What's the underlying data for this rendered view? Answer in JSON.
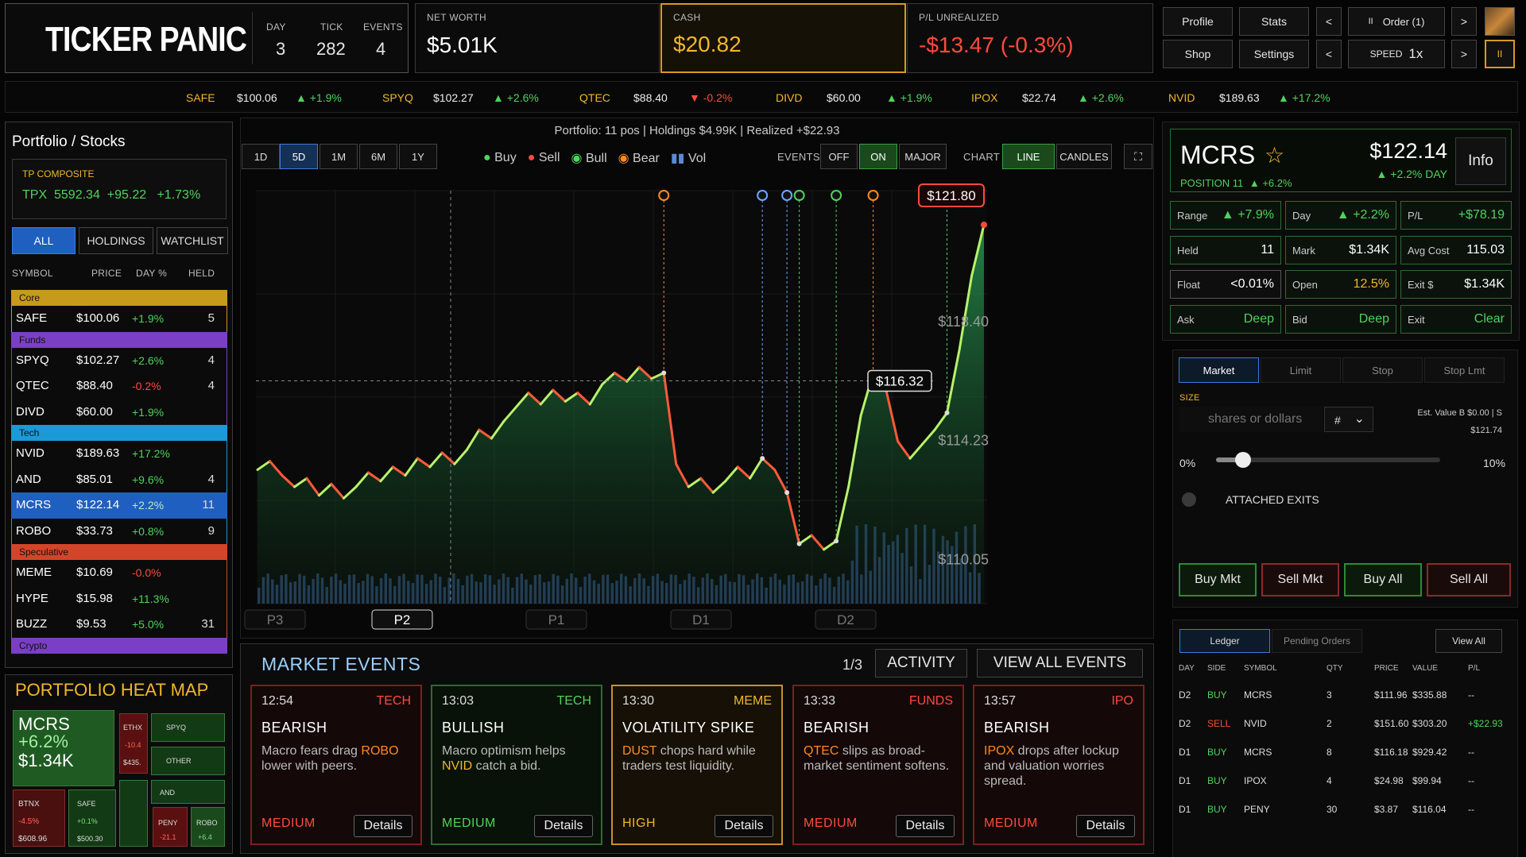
{
  "brand": {
    "logo": "TICKER PANIC"
  },
  "header": {
    "day_label": "DAY",
    "day": "3",
    "tick_label": "TICK",
    "tick": "282",
    "events_label": "EVENTS",
    "events": "4",
    "networth_label": "NET WORTH",
    "networth": "$5.01K",
    "cash_label": "CASH",
    "cash": "$20.82",
    "pl_label": "P/L UNREALIZED",
    "pl": "-$13.47 (-0.3%)",
    "profile": "Profile",
    "stats": "Stats",
    "shop": "Shop",
    "settings": "Settings",
    "prev": "<",
    "next": ">",
    "order": "Order (1)",
    "speed_label": "SPEED",
    "speed": "1x",
    "pause_icon": "II"
  },
  "ticker": [
    {
      "sym": "SAFE",
      "price": "$100.06",
      "chg": "▲ +1.9%",
      "up": true
    },
    {
      "sym": "SPYQ",
      "price": "$102.27",
      "chg": "▲ +2.6%",
      "up": true
    },
    {
      "sym": "QTEC",
      "price": "$88.40",
      "chg": "▼ -0.2%",
      "up": false
    },
    {
      "sym": "DIVD",
      "price": "$60.00",
      "chg": "▲ +1.9%",
      "up": true
    },
    {
      "sym": "IPOX",
      "price": "$22.74",
      "chg": "▲ +2.6%",
      "up": true
    },
    {
      "sym": "NVID",
      "price": "$189.63",
      "chg": "▲ +17.2%",
      "up": true
    }
  ],
  "portfolio": {
    "title": "Portfolio / Stocks",
    "composite_label": "TP COMPOSITE",
    "composite": "TPX  5592.34  +95.22   +1.73%",
    "tabs": [
      "ALL",
      "HOLDINGS",
      "WATCHLIST"
    ],
    "cols": [
      "SYMBOL",
      "PRICE",
      "DAY %",
      "HELD"
    ],
    "groups": [
      {
        "name": "Core",
        "color": "#c89a1c",
        "rows": [
          {
            "sym": "SAFE",
            "price": "$100.06",
            "chg": "+1.9%",
            "held": "5",
            "up": true
          }
        ]
      },
      {
        "name": "Funds",
        "color": "#7a3fc4",
        "rows": [
          {
            "sym": "SPYQ",
            "price": "$102.27",
            "chg": "+2.6%",
            "held": "4",
            "up": true
          },
          {
            "sym": "QTEC",
            "price": "$88.40",
            "chg": "-0.2%",
            "held": "4",
            "up": false
          },
          {
            "sym": "DIVD",
            "price": "$60.00",
            "chg": "+1.9%",
            "held": "",
            "up": true
          }
        ]
      },
      {
        "name": "Tech",
        "color": "#1c9ad6",
        "rows": [
          {
            "sym": "NVID",
            "price": "$189.63",
            "chg": "+17.2%",
            "held": "",
            "up": true
          },
          {
            "sym": "AND",
            "price": "$85.01",
            "chg": "+9.6%",
            "held": "4",
            "up": true
          },
          {
            "sym": "MCRS",
            "price": "$122.14",
            "chg": "+2.2%",
            "held": "11",
            "up": true,
            "selected": true
          },
          {
            "sym": "ROBO",
            "price": "$33.73",
            "chg": "+0.8%",
            "held": "9",
            "up": true
          }
        ]
      },
      {
        "name": "Speculative",
        "color": "#d2452a",
        "rows": [
          {
            "sym": "MEME",
            "price": "$10.69",
            "chg": "-0.0%",
            "held": "",
            "up": false
          },
          {
            "sym": "HYPE",
            "price": "$15.98",
            "chg": "+11.3%",
            "held": "",
            "up": true
          },
          {
            "sym": "BUZZ",
            "price": "$9.53",
            "chg": "+5.0%",
            "held": "31",
            "up": true
          }
        ]
      },
      {
        "name": "Crypto",
        "color": "#7a3fc4",
        "rows": []
      }
    ]
  },
  "heatmap": {
    "title": "PORTFOLIO HEAT MAP",
    "main": {
      "sym": "MCRS",
      "chg": "+6.2%",
      "val": "$1.34K"
    },
    "tiles": {
      "ethx": {
        "sym": "ETHX",
        "chg": "-10.4",
        "val": "$435."
      },
      "spyq": {
        "sym": "SPYQ"
      },
      "other": {
        "sym": "OTHER"
      },
      "and": {
        "sym": "AND"
      },
      "btnx": {
        "sym": "BTNX",
        "chg": "-4.5%",
        "val": "$608.96"
      },
      "safe": {
        "sym": "SAFE",
        "chg": "+0.1%",
        "val": "$500.30"
      },
      "peny": {
        "sym": "PENY",
        "chg": "-21.1"
      },
      "robo": {
        "sym": "ROBO",
        "chg": "+6.4"
      }
    }
  },
  "chart": {
    "summary": "Portfolio: 11 pos | Holdings $4.99K | Realized +$22.93",
    "ranges": [
      "1D",
      "5D",
      "1M",
      "6M",
      "1Y"
    ],
    "legend": {
      "buy": "Buy",
      "sell": "Sell",
      "bull": "Bull",
      "bear": "Bear",
      "vol": "Vol"
    },
    "events_label": "EVENTS",
    "events_opts": [
      "OFF",
      "ON",
      "MAJOR"
    ],
    "chart_label": "CHART",
    "chart_opts": [
      "LINE",
      "CANDLES"
    ],
    "expand_icon": "⛶",
    "last_price": "$121.80",
    "cross_price": "$116.32",
    "y_labels": [
      "$118.40",
      "$114.23",
      "$110.05"
    ],
    "x_labels": [
      "P3",
      "P2",
      "P1",
      "D1",
      "D2"
    ]
  },
  "chart_data": {
    "type": "line",
    "x": [
      0,
      1,
      2,
      3,
      4,
      5,
      6,
      7,
      8,
      9,
      10,
      11,
      12,
      13,
      14,
      15,
      16,
      17,
      18,
      19,
      20,
      21,
      22,
      23,
      24,
      25,
      26,
      27,
      28,
      29,
      30,
      31,
      32,
      33,
      34,
      35,
      36,
      37,
      38,
      39,
      40,
      41,
      42,
      43,
      44,
      45,
      46,
      47,
      48,
      49,
      50,
      51,
      52,
      53,
      54,
      55,
      56,
      57,
      58,
      59
    ],
    "values": [
      113.2,
      113.5,
      113.0,
      112.6,
      112.9,
      112.3,
      112.7,
      112.2,
      112.6,
      113.1,
      112.8,
      113.3,
      113.0,
      113.6,
      113.3,
      113.8,
      113.4,
      113.9,
      114.6,
      114.3,
      114.9,
      115.4,
      115.9,
      115.5,
      116.0,
      115.6,
      115.9,
      115.5,
      116.2,
      116.6,
      116.3,
      116.8,
      116.4,
      116.6,
      113.4,
      112.6,
      112.9,
      112.4,
      112.8,
      113.3,
      112.9,
      113.6,
      113.2,
      112.4,
      110.6,
      110.9,
      110.4,
      110.7,
      112.6,
      115.1,
      116.6,
      116.1,
      114.2,
      113.6,
      114.1,
      114.6,
      115.2,
      117.4,
      120.0,
      121.8
    ],
    "ylim": [
      108.5,
      123.0
    ]
  },
  "market_events": {
    "title": "MARKET EVENTS",
    "page": "1/3",
    "activity": "ACTIVITY",
    "view_all": "VIEW ALL EVENTS",
    "details": "Details",
    "cards": [
      {
        "time": "12:54",
        "cat": "TECH",
        "head": "BEARISH",
        "tk": "ROBO",
        "pre": "Macro fears drag ",
        "post": " lower with peers.",
        "sev": "MEDIUM",
        "bull": false
      },
      {
        "time": "13:03",
        "cat": "TECH",
        "head": "BULLISH",
        "tk": "NVID",
        "pre": "Macro optimism helps ",
        "post": " catch a bid.",
        "sev": "MEDIUM",
        "bull": true
      },
      {
        "time": "13:30",
        "cat": "MEME",
        "head": "VOLATILITY SPIKE",
        "tk": "DUST",
        "pre": "",
        "post": " chops hard while traders test liquidity.",
        "sev": "HIGH",
        "bull": null
      },
      {
        "time": "13:33",
        "cat": "FUNDS",
        "head": "BEARISH",
        "tk": "QTEC",
        "pre": "",
        "post": " slips as broad-market sentiment softens.",
        "sev": "MEDIUM",
        "bull": false
      },
      {
        "time": "13:57",
        "cat": "IPO",
        "head": "BEARISH",
        "tk": "IPOX",
        "pre": "",
        "post": " drops after lockup and valuation worries spread.",
        "sev": "MEDIUM",
        "bull": false
      }
    ]
  },
  "detail": {
    "sym": "MCRS",
    "star": "☆",
    "price": "$122.14",
    "day": "▲ +2.2% DAY",
    "position": "POSITION 11",
    "pos_chg": "▲ +6.2%",
    "info": "Info",
    "stats": [
      {
        "k": "Range",
        "v": "▲ +7.9%",
        "c": "g"
      },
      {
        "k": "Day",
        "v": "▲ +2.2%",
        "c": "g"
      },
      {
        "k": "P/L",
        "v": "+$78.19",
        "c": "g"
      },
      {
        "k": "Held",
        "v": "11",
        "c": "w"
      },
      {
        "k": "Mark",
        "v": "$1.34K",
        "c": "w"
      },
      {
        "k": "Avg Cost",
        "v": "115.03",
        "c": "w"
      },
      {
        "k": "Float",
        "v": "<0.01%",
        "c": "w"
      },
      {
        "k": "Open",
        "v": "12.5%",
        "c": "y"
      },
      {
        "k": "Exit $",
        "v": "$1.34K",
        "c": "w"
      },
      {
        "k": "Ask",
        "v": "Deep",
        "c": "g"
      },
      {
        "k": "Bid",
        "v": "Deep",
        "c": "g"
      },
      {
        "k": "Exit",
        "v": "Clear",
        "c": "g"
      }
    ]
  },
  "order": {
    "tabs": [
      "Market",
      "Limit",
      "Stop",
      "Stop Lmt"
    ],
    "size_label": "SIZE",
    "placeholder": "shares or dollars",
    "unit": "#",
    "est": "Est. Value B $0.00 | S",
    "est2": "$121.74",
    "slider_min": "0%",
    "slider_max": "10%",
    "slider_value": 0.1,
    "attached": "ATTACHED EXITS",
    "buy_mkt": "Buy Mkt",
    "sell_mkt": "Sell Mkt",
    "buy_all": "Buy All",
    "sell_all": "Sell All"
  },
  "ledger": {
    "tabs": [
      "Ledger",
      "Pending Orders"
    ],
    "view_all": "View All",
    "cols": [
      "DAY",
      "SIDE",
      "SYMBOL",
      "QTY",
      "PRICE",
      "VALUE",
      "P/L"
    ],
    "rows": [
      [
        "D2",
        "BUY",
        "MCRS",
        "3",
        "$111.96",
        "$335.88",
        "--"
      ],
      [
        "D2",
        "SELL",
        "NVID",
        "2",
        "$151.60",
        "$303.20",
        "+$22.93"
      ],
      [
        "D1",
        "BUY",
        "MCRS",
        "8",
        "$116.18",
        "$929.42",
        "--"
      ],
      [
        "D1",
        "BUY",
        "IPOX",
        "4",
        "$24.98",
        "$99.94",
        "--"
      ],
      [
        "D1",
        "BUY",
        "PENY",
        "30",
        "$3.87",
        "$116.04",
        "--"
      ]
    ]
  },
  "colors": {
    "green": "#4fd35c",
    "red": "#ff4a3d",
    "gold": "#f2b62b",
    "accent": "#1f6fd6"
  }
}
